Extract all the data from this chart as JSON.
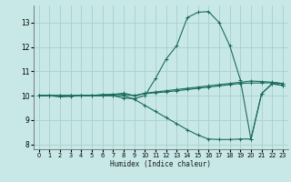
{
  "xlabel": "Humidex (Indice chaleur)",
  "bg_color": "#c8e8e8",
  "grid_color": "#a8cece",
  "line_color": "#1a6b5a",
  "xlim": [
    -0.5,
    23.5
  ],
  "ylim": [
    7.8,
    13.7
  ],
  "yticks": [
    8,
    9,
    10,
    11,
    12,
    13
  ],
  "xticks": [
    0,
    1,
    2,
    3,
    4,
    5,
    6,
    7,
    8,
    9,
    10,
    11,
    12,
    13,
    14,
    15,
    16,
    17,
    18,
    19,
    20,
    21,
    22,
    23
  ],
  "series": [
    {
      "x": [
        0,
        1,
        2,
        3,
        4,
        5,
        6,
        7,
        8,
        9,
        10,
        11,
        12,
        13,
        14,
        15,
        16,
        17,
        18,
        19,
        20,
        21,
        22,
        23
      ],
      "y": [
        10.0,
        10.0,
        10.0,
        10.0,
        10.0,
        10.0,
        10.05,
        10.05,
        10.05,
        10.0,
        10.08,
        10.12,
        10.15,
        10.2,
        10.25,
        10.3,
        10.35,
        10.4,
        10.45,
        10.5,
        10.52,
        10.52,
        10.53,
        10.5
      ]
    },
    {
      "x": [
        0,
        1,
        2,
        3,
        4,
        5,
        6,
        7,
        8,
        9,
        10,
        11,
        12,
        13,
        14,
        15,
        16,
        17,
        18,
        19,
        20,
        21,
        22,
        23
      ],
      "y": [
        10.0,
        10.0,
        9.95,
        9.97,
        10.0,
        10.0,
        10.0,
        10.0,
        9.9,
        9.88,
        10.0,
        10.7,
        11.5,
        12.05,
        13.2,
        13.42,
        13.45,
        13.0,
        12.05,
        10.65,
        8.2,
        10.08,
        10.5,
        10.42
      ]
    },
    {
      "x": [
        0,
        1,
        2,
        3,
        4,
        5,
        6,
        7,
        8,
        9,
        10,
        11,
        12,
        13,
        14,
        15,
        16,
        17,
        18,
        19,
        20,
        21,
        22,
        23
      ],
      "y": [
        10.0,
        10.0,
        10.0,
        10.0,
        10.0,
        10.0,
        10.0,
        10.05,
        10.1,
        10.0,
        10.1,
        10.15,
        10.2,
        10.25,
        10.3,
        10.35,
        10.4,
        10.45,
        10.5,
        10.55,
        10.6,
        10.58,
        10.55,
        10.5
      ]
    },
    {
      "x": [
        0,
        1,
        2,
        3,
        4,
        5,
        6,
        7,
        8,
        9,
        10,
        11,
        12,
        13,
        14,
        15,
        16,
        17,
        18,
        19,
        20,
        21,
        22,
        23
      ],
      "y": [
        10.0,
        10.0,
        10.0,
        10.0,
        10.0,
        10.0,
        10.0,
        10.0,
        10.0,
        9.85,
        9.6,
        9.35,
        9.1,
        8.85,
        8.6,
        8.38,
        8.22,
        8.2,
        8.2,
        8.22,
        8.22,
        10.08,
        10.48,
        10.42
      ]
    }
  ]
}
